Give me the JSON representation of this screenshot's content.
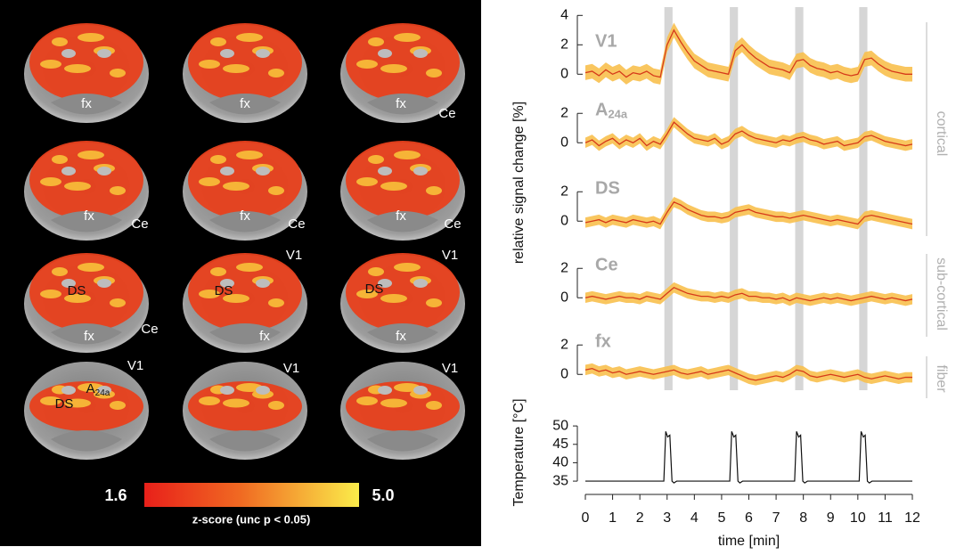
{
  "brain_panel": {
    "slices": [
      {
        "labels": [
          "fx"
        ]
      },
      {
        "labels": [
          "fx"
        ]
      },
      {
        "labels": [
          "fx",
          "Ce"
        ]
      },
      {
        "labels": [
          "fx",
          "Ce"
        ]
      },
      {
        "labels": [
          "fx",
          "Ce"
        ]
      },
      {
        "labels": [
          "fx",
          "Ce"
        ]
      },
      {
        "labels": [
          "DS",
          "fx",
          "Ce"
        ]
      },
      {
        "labels": [
          "V1",
          "DS",
          "fx"
        ]
      },
      {
        "labels": [
          "V1",
          "DS",
          "fx"
        ]
      },
      {
        "labels": [
          "V1",
          {
            "main": "A",
            "sub": "24a"
          },
          "DS"
        ]
      },
      {
        "labels": [
          "V1"
        ]
      },
      {
        "labels": [
          "V1"
        ]
      }
    ],
    "colorbar": {
      "min": "1.6",
      "max": "5.0",
      "label": "z-score (unc p < 0.05)"
    }
  },
  "chart_data": {
    "type": "line",
    "ylabel": "relative signal change [%]",
    "xlabel": "time [min]",
    "xlim": [
      0,
      12
    ],
    "xticks": [
      0,
      1,
      2,
      3,
      4,
      5,
      6,
      7,
      8,
      9,
      10,
      11,
      12
    ],
    "stimuli": [
      [
        2.9,
        3.2
      ],
      [
        5.3,
        5.6
      ],
      [
        7.7,
        8.0
      ],
      [
        10.05,
        10.35
      ]
    ],
    "groups": [
      "cortical",
      "sub-cortical",
      "fiber"
    ],
    "x": [
      0,
      0.25,
      0.5,
      0.75,
      1,
      1.25,
      1.5,
      1.75,
      2,
      2.25,
      2.5,
      2.75,
      3,
      3.25,
      3.5,
      3.75,
      4,
      4.25,
      4.5,
      4.75,
      5,
      5.25,
      5.5,
      5.75,
      6,
      6.25,
      6.5,
      6.75,
      7,
      7.25,
      7.5,
      7.75,
      8,
      8.25,
      8.5,
      8.75,
      9,
      9.25,
      9.5,
      9.75,
      10,
      10.25,
      10.5,
      10.75,
      11,
      11.25,
      11.5,
      11.75,
      12
    ],
    "panels": [
      {
        "title": "V1",
        "ylim": [
          -1,
          4.2
        ],
        "yticks": [
          0,
          2,
          4
        ],
        "color": "#d63a1a",
        "band_color": "#f8c04e",
        "error": 0.5,
        "values": [
          0.1,
          0.2,
          -0.1,
          0.3,
          0,
          0.2,
          -0.2,
          0.1,
          0,
          0.2,
          -0.1,
          -0.2,
          2.0,
          3.0,
          2.2,
          1.5,
          0.9,
          0.6,
          0.3,
          0.2,
          0.1,
          0.0,
          1.6,
          2.0,
          1.5,
          1.1,
          0.8,
          0.5,
          0.4,
          0.3,
          0.1,
          0.9,
          1.0,
          0.6,
          0.4,
          0.3,
          0.1,
          0.2,
          0.0,
          -0.1,
          0.0,
          1.0,
          1.1,
          0.7,
          0.4,
          0.2,
          0.1,
          0.0,
          0.0
        ]
      },
      {
        "title": "A",
        "title_sub": "24a",
        "ylim": [
          -1,
          2.5
        ],
        "yticks": [
          0,
          2
        ],
        "color": "#d63a1a",
        "band_color": "#f8c04e",
        "error": 0.35,
        "values": [
          0,
          0.2,
          -0.2,
          0.1,
          0.3,
          -0.1,
          0.2,
          0,
          0.3,
          -0.2,
          0.1,
          -0.1,
          0.6,
          1.4,
          1.0,
          0.6,
          0.3,
          0.2,
          0.1,
          0.3,
          -0.1,
          0.1,
          0.6,
          0.8,
          0.5,
          0.3,
          0.2,
          0.1,
          0,
          0.2,
          0.1,
          0.3,
          0.4,
          0.2,
          0.1,
          -0.1,
          0,
          0.1,
          -0.2,
          -0.1,
          0,
          0.4,
          0.5,
          0.3,
          0.1,
          0,
          -0.1,
          -0.2,
          -0.1
        ]
      },
      {
        "title": "DS",
        "ylim": [
          -1,
          2.5
        ],
        "yticks": [
          0,
          2
        ],
        "color": "#d63a1a",
        "band_color": "#f8c04e",
        "error": 0.35,
        "values": [
          -0.1,
          0,
          0.1,
          -0.1,
          0.1,
          0,
          -0.1,
          0.1,
          0,
          -0.1,
          0,
          -0.2,
          0.6,
          1.3,
          1.1,
          0.8,
          0.6,
          0.4,
          0.3,
          0.3,
          0.2,
          0.3,
          0.6,
          0.7,
          0.8,
          0.6,
          0.5,
          0.4,
          0.3,
          0.3,
          0.2,
          0.3,
          0.4,
          0.3,
          0.2,
          0.1,
          0,
          0.1,
          0,
          -0.1,
          -0.2,
          0.3,
          0.4,
          0.3,
          0.2,
          0.1,
          0,
          -0.1,
          -0.2
        ]
      },
      {
        "title": "Ce",
        "ylim": [
          -1,
          2.5
        ],
        "yticks": [
          0,
          2
        ],
        "color": "#d63a1a",
        "band_color": "#f8c04e",
        "error": 0.35,
        "values": [
          0,
          0.1,
          0,
          -0.1,
          0,
          0.1,
          0,
          0,
          -0.1,
          0.1,
          0,
          -0.1,
          0.3,
          0.7,
          0.5,
          0.3,
          0.2,
          0.1,
          0.1,
          0,
          0.1,
          0,
          0.2,
          0.3,
          0.1,
          0.1,
          0,
          0,
          -0.1,
          0,
          -0.2,
          0,
          -0.1,
          -0.2,
          -0.1,
          0,
          -0.1,
          0,
          -0.1,
          -0.2,
          -0.1,
          0,
          0.1,
          0,
          -0.1,
          0,
          -0.1,
          -0.2,
          -0.1
        ]
      },
      {
        "title": "fx",
        "ylim": [
          -1,
          2.5
        ],
        "yticks": [
          0,
          2
        ],
        "color": "#d63a1a",
        "band_color": "#f8c04e",
        "error": 0.35,
        "values": [
          0.3,
          0.4,
          0.2,
          0.3,
          0.1,
          0.2,
          0,
          0.1,
          0.2,
          0.1,
          0,
          0.1,
          0.2,
          0.3,
          0.1,
          0,
          0.1,
          0.2,
          0,
          0.1,
          0.2,
          0.3,
          0.1,
          -0.1,
          -0.3,
          -0.4,
          -0.3,
          -0.2,
          -0.1,
          -0.2,
          0,
          0.3,
          0.2,
          -0.1,
          -0.2,
          -0.1,
          0,
          -0.1,
          -0.2,
          -0.1,
          0,
          -0.2,
          -0.3,
          -0.2,
          -0.1,
          -0.2,
          -0.3,
          -0.2,
          -0.2
        ]
      }
    ],
    "temperature": {
      "ylabel": "Temperature [°C]",
      "ylim": [
        34,
        51
      ],
      "yticks": [
        35,
        40,
        45,
        50
      ],
      "color": "#111111",
      "x": [
        0,
        2.88,
        2.95,
        3.02,
        3.1,
        3.18,
        3.25,
        3.35,
        5.3,
        5.37,
        5.45,
        5.52,
        5.6,
        5.67,
        5.77,
        7.68,
        7.75,
        7.83,
        7.9,
        7.98,
        8.05,
        8.15,
        10.05,
        10.12,
        10.2,
        10.27,
        10.35,
        10.42,
        10.52,
        12
      ],
      "values": [
        35,
        35,
        48.5,
        47,
        47.5,
        35,
        34.5,
        35,
        35,
        48.5,
        47,
        47.5,
        35,
        34.5,
        35,
        35,
        48.5,
        47,
        47.5,
        35,
        34.5,
        35,
        35,
        48.5,
        47,
        47.5,
        35,
        34.5,
        35,
        35
      ]
    }
  }
}
